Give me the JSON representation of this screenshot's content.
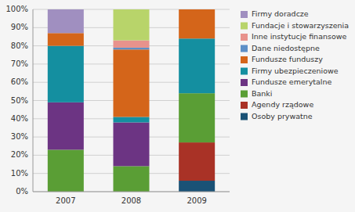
{
  "chart_data": {
    "type": "bar",
    "stacked": true,
    "categories": [
      "2007",
      "2008",
      "2009"
    ],
    "series": [
      {
        "name": "Osoby prywatne",
        "color": "#1a5276",
        "values": [
          0,
          0,
          6
        ]
      },
      {
        "name": "Agendy rządowe",
        "color": "#a93226",
        "values": [
          0,
          0,
          21
        ]
      },
      {
        "name": "Banki",
        "color": "#5a9e35",
        "values": [
          23,
          14,
          27
        ]
      },
      {
        "name": "Fundusze emerytalne",
        "color": "#6c3483",
        "values": [
          26,
          24,
          0
        ]
      },
      {
        "name": "Firmy ubezpieczeniowe",
        "color": "#148fa0",
        "values": [
          31,
          3,
          30
        ]
      },
      {
        "name": "Fundusze funduszy",
        "color": "#d4651a",
        "values": [
          7,
          37,
          16
        ]
      },
      {
        "name": "Dane niedostępne",
        "color": "#5d8fc7",
        "values": [
          0,
          1,
          0
        ]
      },
      {
        "name": "Inne instytucje finansowe",
        "color": "#e8928c",
        "values": [
          0,
          4,
          0
        ]
      },
      {
        "name": "Fundacje i stowarzyszenia",
        "color": "#b8d46a",
        "values": [
          0,
          17,
          0
        ]
      },
      {
        "name": "Firmy doradcze",
        "color": "#a08fc0",
        "values": [
          13,
          0,
          0
        ]
      }
    ],
    "ylim": [
      0,
      100
    ],
    "yticks": [
      {
        "value": 0,
        "label": "0%"
      },
      {
        "value": 10,
        "label": "10%"
      },
      {
        "value": 20,
        "label": "20%"
      },
      {
        "value": 30,
        "label": "30%"
      },
      {
        "value": 40,
        "label": "40%"
      },
      {
        "value": 50,
        "label": "50%"
      },
      {
        "value": 60,
        "label": "60%"
      },
      {
        "value": 70,
        "label": "70%"
      },
      {
        "value": 80,
        "label": "80%"
      },
      {
        "value": 90,
        "label": "90%"
      },
      {
        "value": 100,
        "label": "100%"
      }
    ],
    "grid": true,
    "legend": "right"
  }
}
